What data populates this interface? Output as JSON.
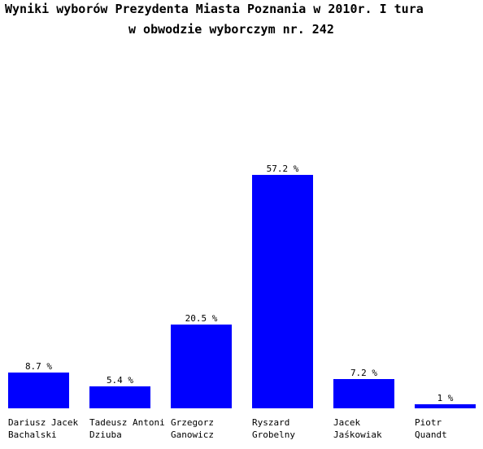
{
  "chart_data": {
    "type": "bar",
    "title": "Wyniki wyborów Prezydenta Miasta Poznania w 2010r. I tura",
    "subtitle": "w obwodzie wyborczym nr. 242",
    "categories": [
      [
        "Dariusz Jacek",
        "Bachalski"
      ],
      [
        "Tadeusz Antoni",
        "Dziuba"
      ],
      [
        "Grzegorz",
        "Ganowicz"
      ],
      [
        "Ryszard",
        "Grobelny"
      ],
      [
        "Jacek",
        "Jaśkowiak"
      ],
      [
        "Piotr",
        "Quandt"
      ]
    ],
    "values": [
      8.7,
      5.4,
      20.5,
      57.2,
      7.2,
      1
    ],
    "value_labels": [
      "8.7 %",
      "5.4 %",
      "20.5 %",
      "57.2 %",
      "7.2 %",
      "1 %"
    ],
    "bar_color": "#0000ff",
    "xlabel": "",
    "ylabel": "",
    "ylim": [
      0,
      57.2
    ],
    "grid": false,
    "legend": "none"
  }
}
